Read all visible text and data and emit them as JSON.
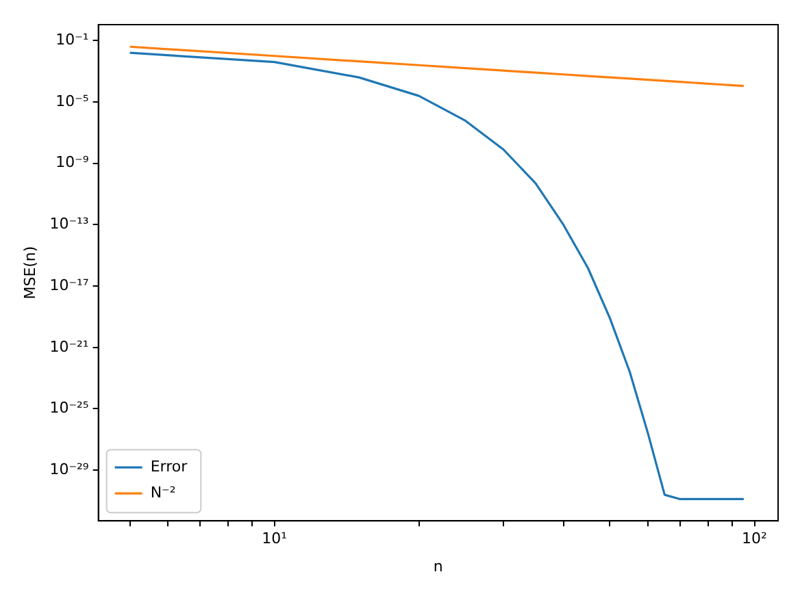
{
  "chart_data": {
    "type": "line",
    "xlabel": "n",
    "ylabel": "MSE(n)",
    "x": [
      5,
      10,
      15,
      20,
      25,
      30,
      35,
      40,
      45,
      50,
      55,
      60,
      65,
      70,
      75,
      80,
      85,
      90,
      95
    ],
    "series": [
      {
        "name": "Error",
        "color": "#1f77b4",
        "values": [
          0.016,
          0.004,
          0.0004,
          2.5e-05,
          6e-07,
          8e-09,
          5e-11,
          1e-13,
          1.5e-16,
          8e-20,
          2.5e-23,
          2.5e-27,
          2.5e-31,
          1.3e-31,
          1.3e-31,
          1.3e-31,
          1.3e-31,
          1.3e-31,
          1.3e-31
        ]
      },
      {
        "name": "N⁻²",
        "color": "#ff7f0e",
        "values": [
          0.04,
          0.01,
          0.004444,
          0.0025,
          0.0016,
          0.001111,
          0.000816,
          0.000625,
          0.000494,
          0.0004,
          0.000331,
          0.000278,
          0.000237,
          0.000204,
          0.000178,
          0.000156,
          0.000138,
          0.000123,
          0.000111
        ]
      }
    ],
    "log": "xy",
    "xlim": [
      4.3,
      112
    ],
    "ylim": [
      5e-33,
      1.1
    ],
    "xticks": [
      {
        "value": 5,
        "label": null
      },
      {
        "value": 6,
        "label": null
      },
      {
        "value": 7,
        "label": null
      },
      {
        "value": 8,
        "label": null
      },
      {
        "value": 9,
        "label": null
      },
      {
        "value": 10,
        "label": "10¹"
      },
      {
        "value": 20,
        "label": null
      },
      {
        "value": 30,
        "label": null
      },
      {
        "value": 40,
        "label": null
      },
      {
        "value": 50,
        "label": null
      },
      {
        "value": 60,
        "label": null
      },
      {
        "value": 70,
        "label": null
      },
      {
        "value": 80,
        "label": null
      },
      {
        "value": 90,
        "label": null
      },
      {
        "value": 100,
        "label": "10²"
      }
    ],
    "yticks": [
      {
        "value": 0.1,
        "label": "10⁻¹"
      },
      {
        "value": 1e-05,
        "label": "10⁻⁵"
      },
      {
        "value": 1e-09,
        "label": "10⁻⁹"
      },
      {
        "value": 1e-13,
        "label": "10⁻¹³"
      },
      {
        "value": 1e-17,
        "label": "10⁻¹⁷"
      },
      {
        "value": 1e-21,
        "label": "10⁻²¹"
      },
      {
        "value": 1e-25,
        "label": "10⁻²⁵"
      },
      {
        "value": 1e-29,
        "label": "10⁻²⁹"
      }
    ],
    "grid": false,
    "legend": "bottom left",
    "marker": "none",
    "line_style": "solid"
  }
}
